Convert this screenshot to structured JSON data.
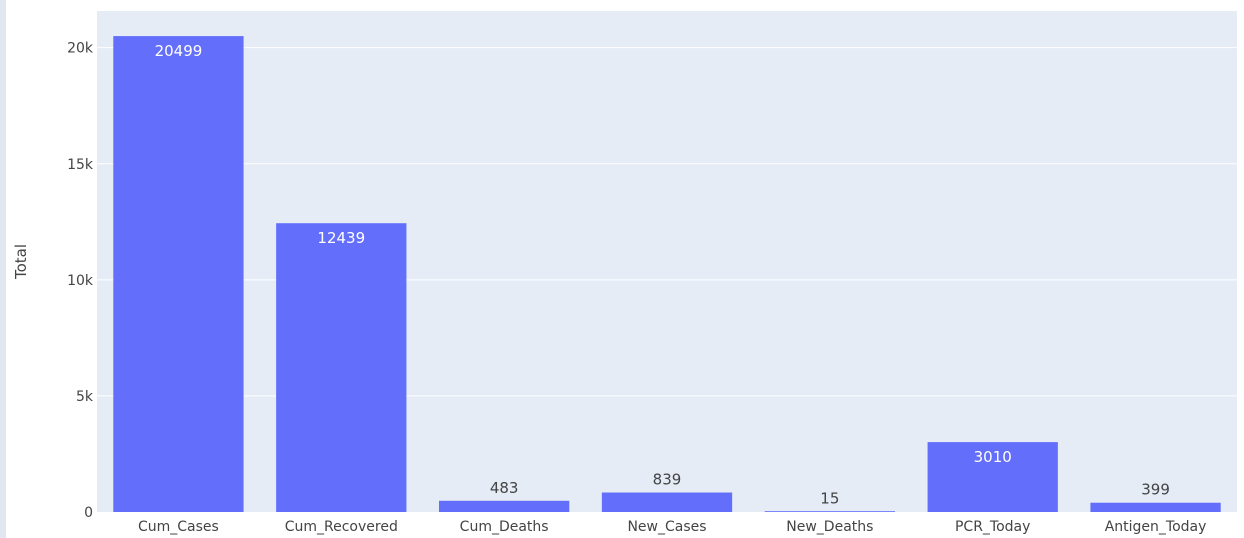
{
  "chart_data": {
    "type": "bar",
    "categories": [
      "Cum_Cases",
      "Cum_Recovered",
      "Cum_Deaths",
      "New_Cases",
      "New_Deaths",
      "PCR_Today",
      "Antigen_Today"
    ],
    "values": [
      20499,
      12439,
      483,
      839,
      15,
      3010,
      399
    ],
    "data_labels": [
      "20499",
      "12439",
      "483",
      "839",
      "15",
      "3010",
      "399"
    ],
    "ylabel": "Total",
    "xlabel": "",
    "ylim": [
      0,
      21580
    ],
    "yticks": [
      0,
      5000,
      10000,
      15000,
      20000
    ],
    "ytick_labels": [
      "0",
      "5k",
      "10k",
      "15k",
      "20k"
    ],
    "grid": true,
    "colors": {
      "bar": "#636efa",
      "plot_background": "#e5ecf6",
      "gridline": "#ffffff",
      "text": "#444444"
    }
  }
}
